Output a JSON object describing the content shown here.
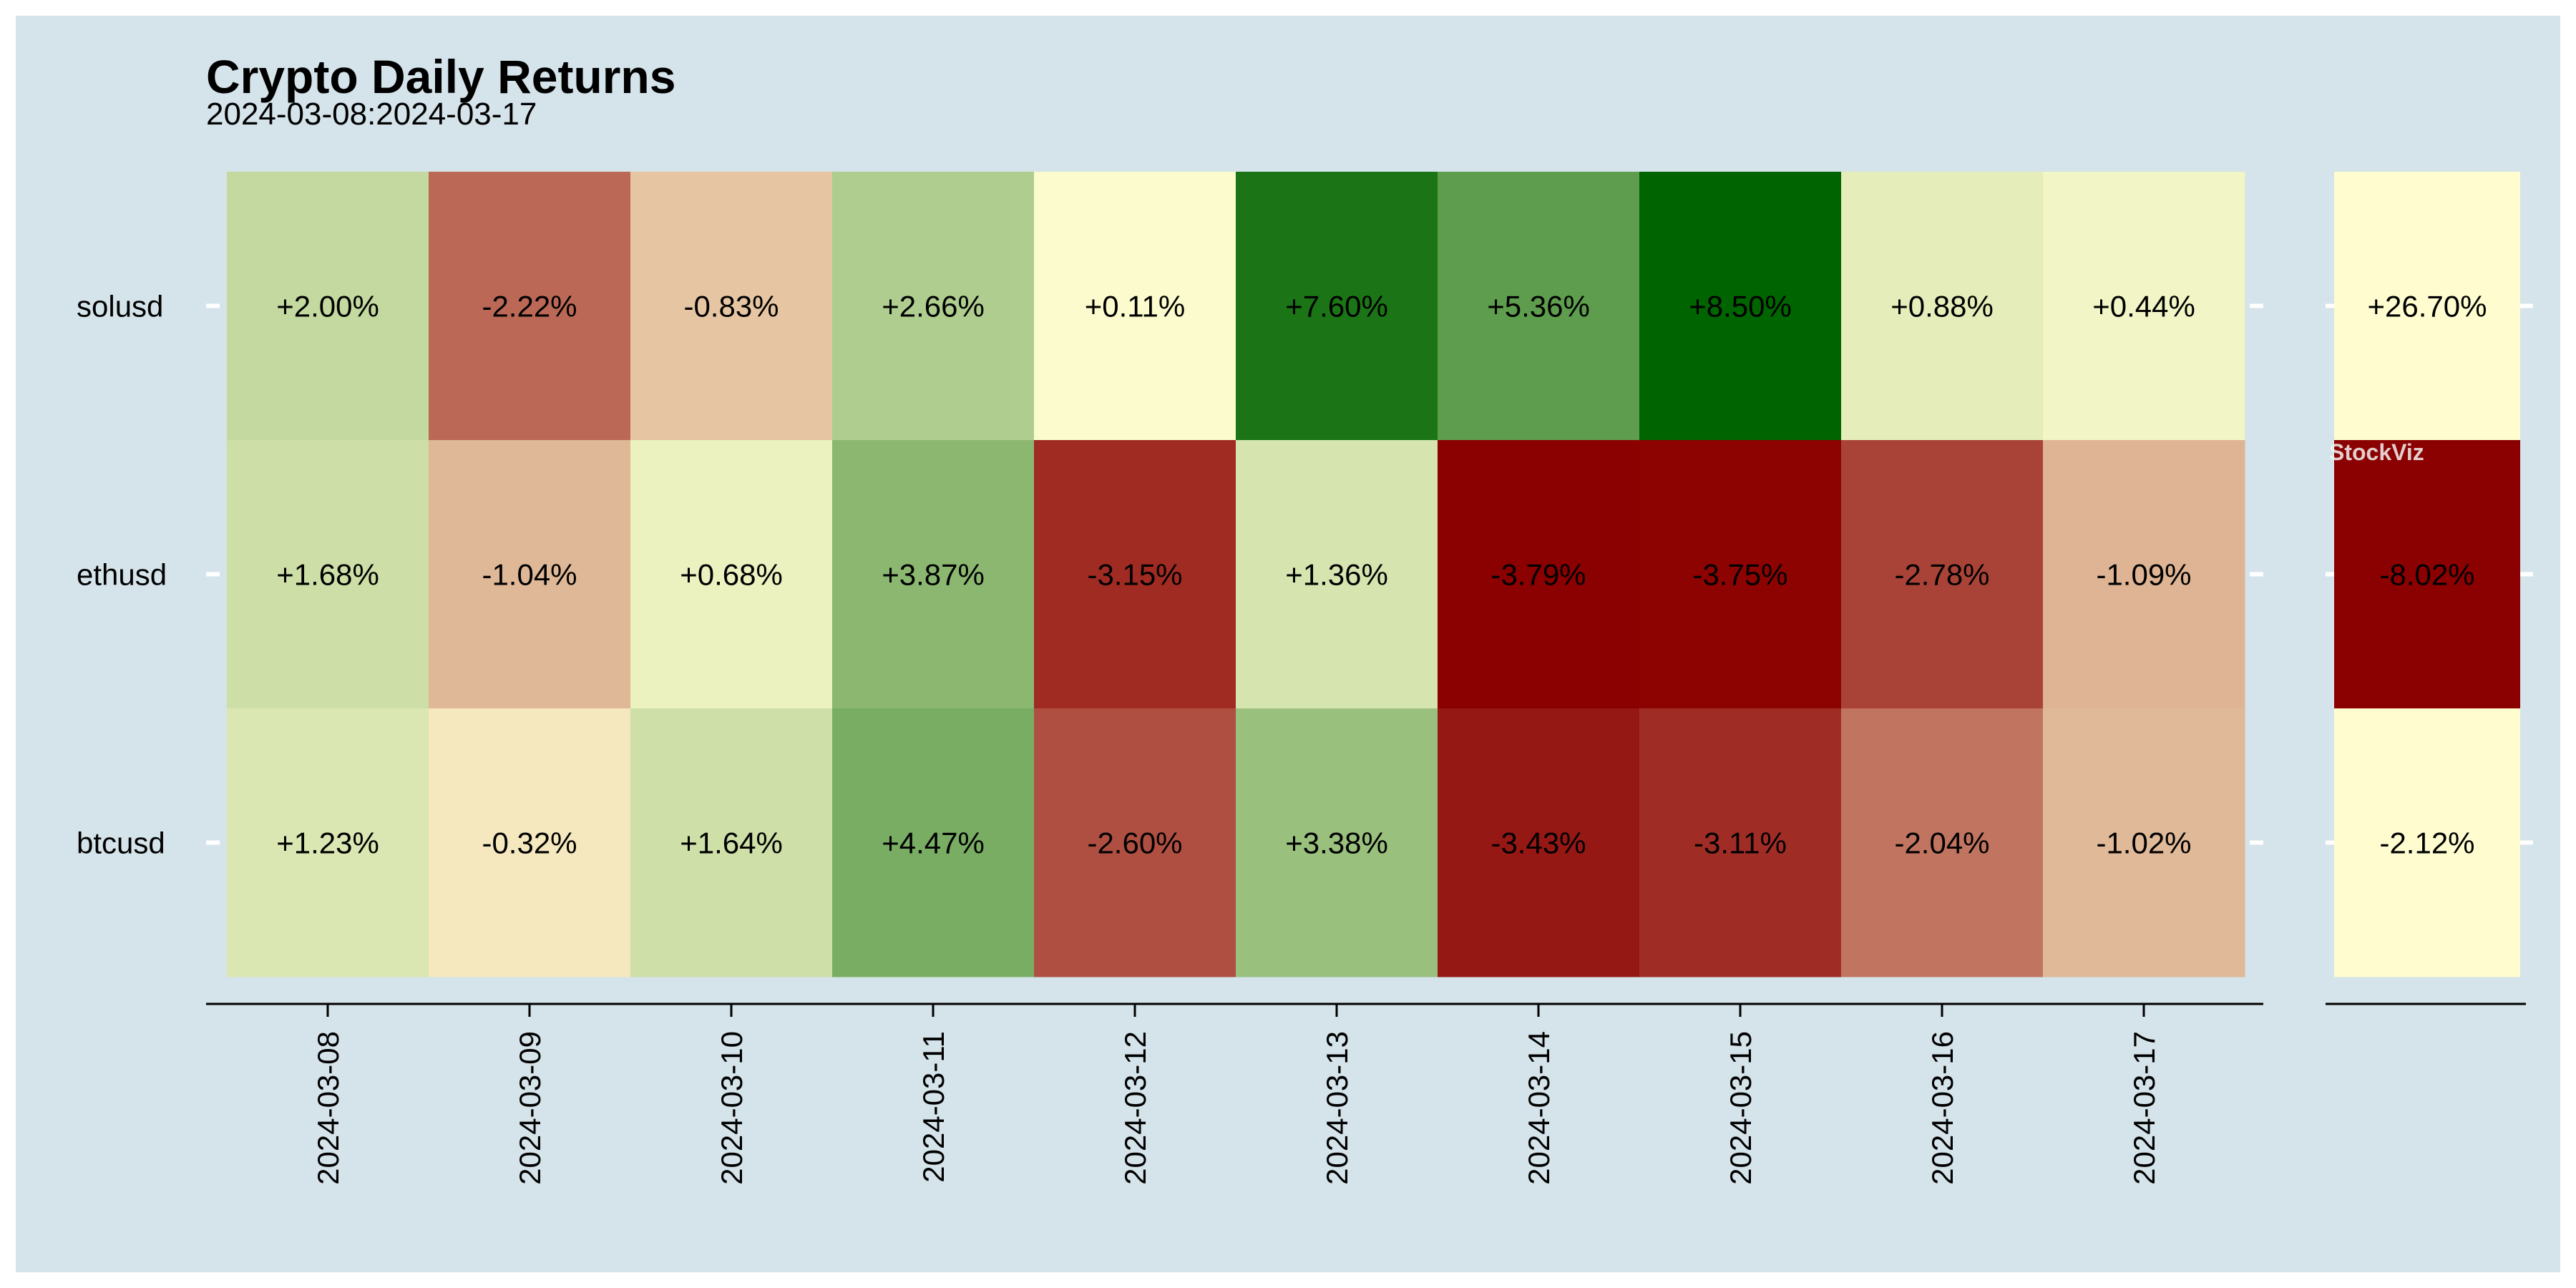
{
  "chart_data": {
    "type": "heatmap",
    "title": "Crypto Daily Returns",
    "subtitle": "2024-03-08:2024-03-17",
    "watermark": "StockViz",
    "rows": [
      "solusd",
      "ethusd",
      "btcusd"
    ],
    "columns": [
      "2024-03-08",
      "2024-03-09",
      "2024-03-10",
      "2024-03-11",
      "2024-03-12",
      "2024-03-13",
      "2024-03-14",
      "2024-03-15",
      "2024-03-16",
      "2024-03-17"
    ],
    "values": [
      [
        2.0,
        -2.22,
        -0.83,
        2.66,
        0.11,
        7.6,
        5.36,
        8.5,
        0.88,
        0.44
      ],
      [
        1.68,
        -1.04,
        0.68,
        3.87,
        -3.15,
        1.36,
        -3.79,
        -3.75,
        -2.78,
        -1.09
      ],
      [
        1.23,
        -0.32,
        1.64,
        4.47,
        -2.6,
        3.38,
        -3.43,
        -3.11,
        -2.04,
        -1.02
      ]
    ],
    "labels": [
      [
        "+2.00%",
        "-2.22%",
        "-0.83%",
        "+2.66%",
        "+0.11%",
        "+7.60%",
        "+5.36%",
        "+8.50%",
        "+0.88%",
        "+0.44%"
      ],
      [
        "+1.68%",
        "-1.04%",
        "+0.68%",
        "+3.87%",
        "-3.15%",
        "+1.36%",
        "-3.79%",
        "-3.75%",
        "-2.78%",
        "-1.09%"
      ],
      [
        "+1.23%",
        "-0.32%",
        "+1.64%",
        "+4.47%",
        "-2.60%",
        "+3.38%",
        "-3.43%",
        "-3.11%",
        "-2.04%",
        "-1.02%"
      ]
    ],
    "totals": {
      "values": [
        26.7,
        -8.02,
        -2.12
      ],
      "labels": [
        "+26.70%",
        "-8.02%",
        "-2.12%"
      ]
    },
    "color_scale": {
      "type": "diverging",
      "negative_color": "#8b0000",
      "mid_color": "#fffdd0",
      "positive_color": "#006400"
    },
    "panel_background": "#d5e3ea",
    "grid": true
  }
}
